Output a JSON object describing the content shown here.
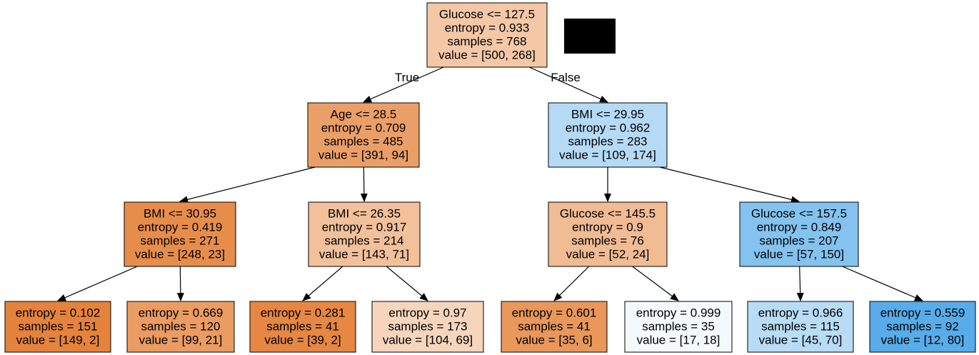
{
  "edge_labels": {
    "true": "True",
    "false": "False"
  },
  "colors": {
    "edge": "#000000",
    "node_border": "#000000"
  },
  "nodes": [
    {
      "id": "root",
      "lines": [
        "Glucose <= 127.5",
        "entropy = 0.933",
        "samples = 768",
        "value = [500, 268]"
      ],
      "fill": "#f4c8a7"
    },
    {
      "id": "age",
      "lines": [
        "Age <= 28.5",
        "entropy = 0.709",
        "samples = 485",
        "value = [391, 94]"
      ],
      "fill": "#eb9f68"
    },
    {
      "id": "bmi_right",
      "lines": [
        "BMI <= 29.95",
        "entropy = 0.962",
        "samples = 283",
        "value = [109, 174]"
      ],
      "fill": "#b5daf5"
    },
    {
      "id": "bmi_3095",
      "lines": [
        "BMI <= 30.95",
        "entropy = 0.419",
        "samples = 271",
        "value = [248, 23]"
      ],
      "fill": "#e78d4c"
    },
    {
      "id": "bmi_2635",
      "lines": [
        "BMI <= 26.35",
        "entropy = 0.917",
        "samples = 214",
        "value = [143, 71]"
      ],
      "fill": "#f2c09b"
    },
    {
      "id": "glu_1455",
      "lines": [
        "Glucose <= 145.5",
        "entropy = 0.9",
        "samples = 76",
        "value = [52, 24]"
      ],
      "fill": "#f1bb94"
    },
    {
      "id": "glu_1575",
      "lines": [
        "Glucose <= 157.5",
        "entropy = 0.849",
        "samples = 207",
        "value = [57, 150]"
      ],
      "fill": "#84c2ef"
    },
    {
      "id": "leaf1",
      "lines": [
        "entropy = 0.102",
        "samples = 151",
        "value = [149, 2]"
      ],
      "fill": "#e5833c"
    },
    {
      "id": "leaf2",
      "lines": [
        "entropy = 0.669",
        "samples = 120",
        "value = [99, 21]"
      ],
      "fill": "#eb9c63"
    },
    {
      "id": "leaf3",
      "lines": [
        "entropy = 0.281",
        "samples = 41",
        "value = [39, 2]"
      ],
      "fill": "#e68743"
    },
    {
      "id": "leaf4",
      "lines": [
        "entropy = 0.97",
        "samples = 173",
        "value = [104, 69]"
      ],
      "fill": "#f6d5bc"
    },
    {
      "id": "leaf5",
      "lines": [
        "entropy = 0.601",
        "samples = 41",
        "value = [35, 6]"
      ],
      "fill": "#e9975b"
    },
    {
      "id": "leaf6",
      "lines": [
        "entropy = 0.999",
        "samples = 35",
        "value = [17, 18]"
      ],
      "fill": "#f4f9fe"
    },
    {
      "id": "leaf7",
      "lines": [
        "entropy = 0.966",
        "samples = 115",
        "value = [45, 70]"
      ],
      "fill": "#b8dcf6"
    },
    {
      "id": "leaf8",
      "lines": [
        "entropy = 0.559",
        "samples = 92",
        "value = [12, 80]"
      ],
      "fill": "#57ace9"
    }
  ],
  "edges": [
    {
      "from": "root",
      "to": "age",
      "label": "true"
    },
    {
      "from": "root",
      "to": "bmi_right",
      "label": "false"
    },
    {
      "from": "age",
      "to": "bmi_3095"
    },
    {
      "from": "age",
      "to": "bmi_2635"
    },
    {
      "from": "bmi_right",
      "to": "glu_1455"
    },
    {
      "from": "bmi_right",
      "to": "glu_1575"
    },
    {
      "from": "bmi_3095",
      "to": "leaf1"
    },
    {
      "from": "bmi_3095",
      "to": "leaf2"
    },
    {
      "from": "bmi_2635",
      "to": "leaf3"
    },
    {
      "from": "bmi_2635",
      "to": "leaf4"
    },
    {
      "from": "glu_1455",
      "to": "leaf5"
    },
    {
      "from": "glu_1455",
      "to": "leaf6"
    },
    {
      "from": "glu_1575",
      "to": "leaf7"
    },
    {
      "from": "glu_1575",
      "to": "leaf8"
    }
  ]
}
